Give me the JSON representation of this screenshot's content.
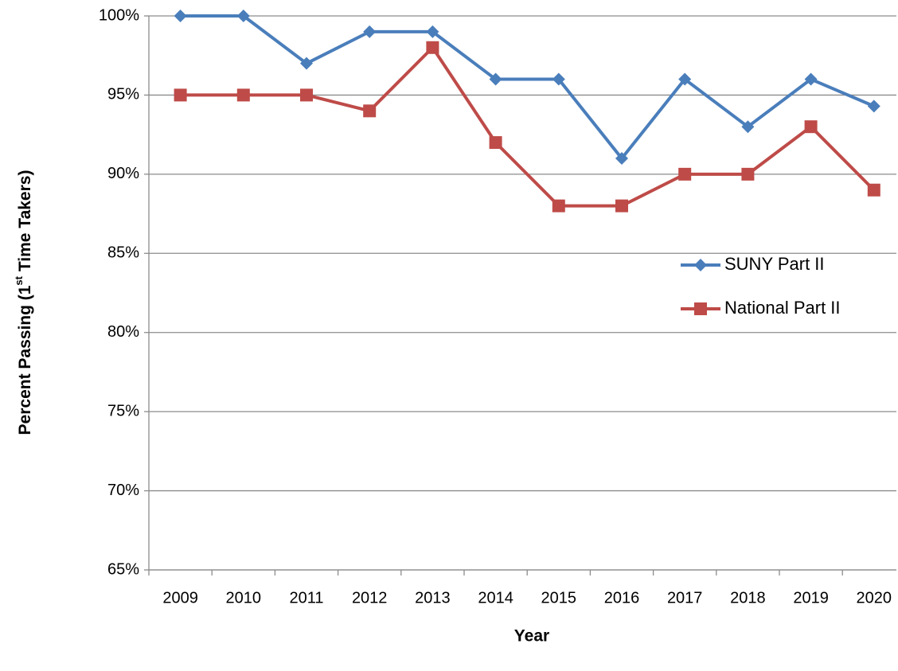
{
  "chart_data": {
    "type": "line",
    "x_label": "Year",
    "y_label": [
      "Percent Passing (1",
      "st",
      " Time Takers)"
    ],
    "categories": [
      "2009",
      "2010",
      "2011",
      "2012",
      "2013",
      "2014",
      "2015",
      "2016",
      "2017",
      "2018",
      "2019",
      "2020"
    ],
    "series": [
      {
        "name": "SUNY Part II",
        "color": "#4a7ebb",
        "marker": "diamond",
        "values": [
          100,
          100,
          97,
          99,
          99,
          96,
          96,
          91,
          96,
          93,
          96,
          94.3
        ]
      },
      {
        "name": "National Part II",
        "color": "#be4b48",
        "marker": "square",
        "values": [
          95,
          95,
          95,
          94,
          98,
          92,
          88,
          88,
          90,
          90,
          93,
          89
        ]
      }
    ],
    "ylim": [
      65,
      100
    ],
    "yticks": [
      {
        "value": 65,
        "label": "65%"
      },
      {
        "value": 70,
        "label": "70%"
      },
      {
        "value": 75,
        "label": "75%"
      },
      {
        "value": 80,
        "label": "80%"
      },
      {
        "value": 85,
        "label": "85%"
      },
      {
        "value": 90,
        "label": "90%"
      },
      {
        "value": 95,
        "label": "95%"
      },
      {
        "value": 100,
        "label": "100%"
      }
    ],
    "grid": true,
    "legend": "right"
  }
}
